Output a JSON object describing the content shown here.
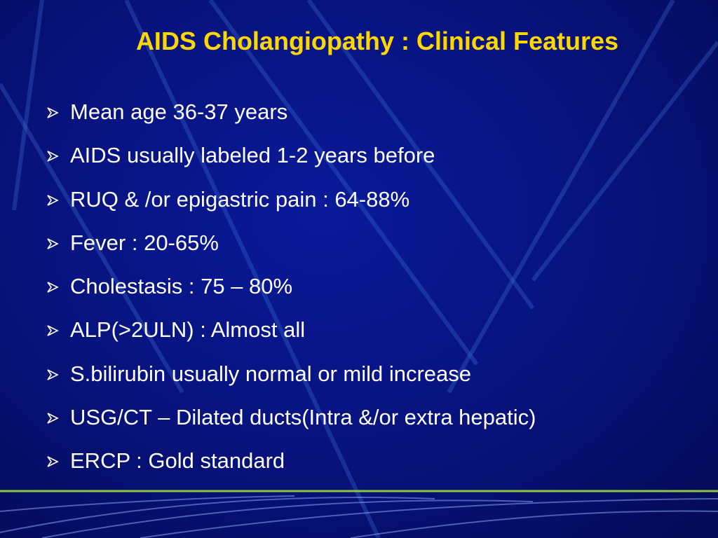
{
  "title": "AIDS Cholangiopathy : Clinical Features",
  "bullets": [
    "Mean age 36-37 years",
    "AIDS usually labeled 1-2 years before",
    "RUQ & /or epigastric pain : 64-88%",
    "Fever : 20-65%",
    "Cholestasis : 75 – 80%",
    "ALP(>2ULN) : Almost all",
    "S.bilirubin usually normal or mild increase",
    "USG/CT – Dilated ducts(Intra &/or extra hepatic)",
    "ERCP : Gold standard"
  ]
}
